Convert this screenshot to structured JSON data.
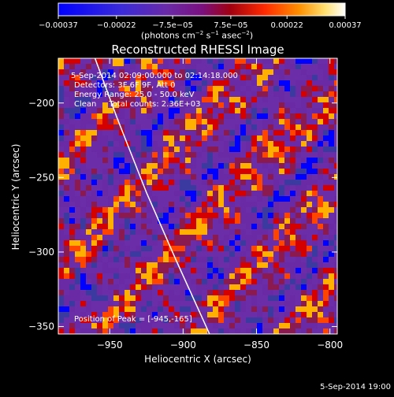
{
  "chart_data": {
    "type": "heatmap",
    "title": "Reconstructed RHESSI Image",
    "xlabel": "Heliocentric X (arcsec)",
    "ylabel": "Heliocentric Y (arcsec)",
    "xlim": [
      -985,
      -795
    ],
    "ylim": [
      -355,
      -170
    ],
    "xticks": [
      -950,
      -900,
      -850,
      -800
    ],
    "yticks": [
      -200,
      -250,
      -300,
      -350
    ],
    "xtick_labels": [
      "−950",
      "−900",
      "−850",
      "−800"
    ],
    "ytick_labels": [
      "−200",
      "−250",
      "−300",
      "−350"
    ],
    "colorbar": {
      "min": -0.00037,
      "max": 0.00037,
      "ticks": [
        -0.00037,
        -0.00022,
        -7.5e-05,
        7.5e-05,
        0.00022,
        0.00037
      ],
      "tick_labels": [
        "−0.00037",
        "−0.00022",
        "−7.5e−05",
        "7.5e−05",
        "0.00022",
        "0.00037"
      ],
      "unit": "(photons cm⁻² s⁻¹ asec⁻²)",
      "unit_parts": [
        "(photons cm",
        "−2",
        " s",
        "−1",
        " asec",
        "−2",
        ")"
      ]
    },
    "limb_curve": {
      "description": "solar limb line",
      "points": [
        [
          -960,
          -170
        ],
        [
          -945,
          -210
        ],
        [
          -925,
          -260
        ],
        [
          -905,
          -305
        ],
        [
          -882,
          -355
        ]
      ]
    },
    "annotations": [
      "5-Sep-2014 02:09:00.000 to 02:14:18.000",
      "Detectors: 3F 6F 9F, Att 0",
      "Energy Range: 25.0 - 50.0 keV",
      "Clean     Total counts: 2.36E+03"
    ],
    "peak_label": "Position of Peak = [-945,-165]",
    "grid": false
  },
  "footer_timestamp": "5-Sep-2014 19:00",
  "colors": {
    "background": "#000000",
    "foreground": "#ffffff",
    "limb": "#ffffff",
    "colormap": [
      "#0000ff",
      "#3a3aa0",
      "#6b2ea8",
      "#6a2aa6",
      "#8a1a50",
      "#d40000",
      "#ff4400",
      "#ffb000",
      "#ffffff"
    ]
  }
}
